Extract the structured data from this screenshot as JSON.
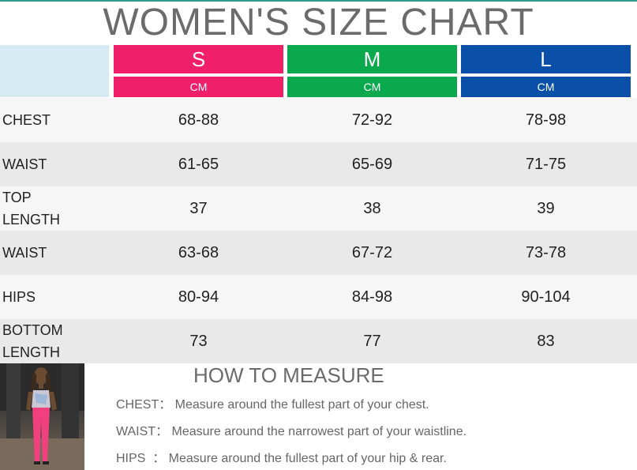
{
  "title": "WOMEN'S SIZE CHART",
  "columns": [
    {
      "size": "S",
      "unit": "CM",
      "color": "#f01f6a",
      "unit_color": "#f01f6a"
    },
    {
      "size": "M",
      "unit": "CM",
      "color": "#0ba94e",
      "unit_color": "#0ba94e"
    },
    {
      "size": "L",
      "unit": "CM",
      "color": "#0a4fa8",
      "unit_color": "#0a4fa8"
    }
  ],
  "rows": [
    {
      "label": [
        "CHEST"
      ],
      "values": [
        "68-88",
        "72-92",
        "78-98"
      ]
    },
    {
      "label": [
        "WAIST"
      ],
      "values": [
        "61-65",
        "65-69",
        "71-75"
      ]
    },
    {
      "label": [
        "TOP",
        "LENGTH"
      ],
      "values": [
        "37",
        "38",
        "39"
      ]
    },
    {
      "label": [
        "WAIST"
      ],
      "values": [
        "63-68",
        "67-72",
        "73-78"
      ]
    },
    {
      "label": [
        "HIPS"
      ],
      "values": [
        "80-94",
        "84-98",
        "90-104"
      ]
    },
    {
      "label": [
        "BOTTOM",
        "LENGTH"
      ],
      "values": [
        "73",
        "77",
        "83"
      ]
    }
  ],
  "how_to_measure": {
    "title": "HOW TO MEASURE",
    "lines": [
      "CHEST： Measure around the fullest part of your chest.",
      "WAIST： Measure around the narrowest part of your waistline.",
      "HIPS  ： Measure around the fullest part of your hip & rear."
    ]
  }
}
